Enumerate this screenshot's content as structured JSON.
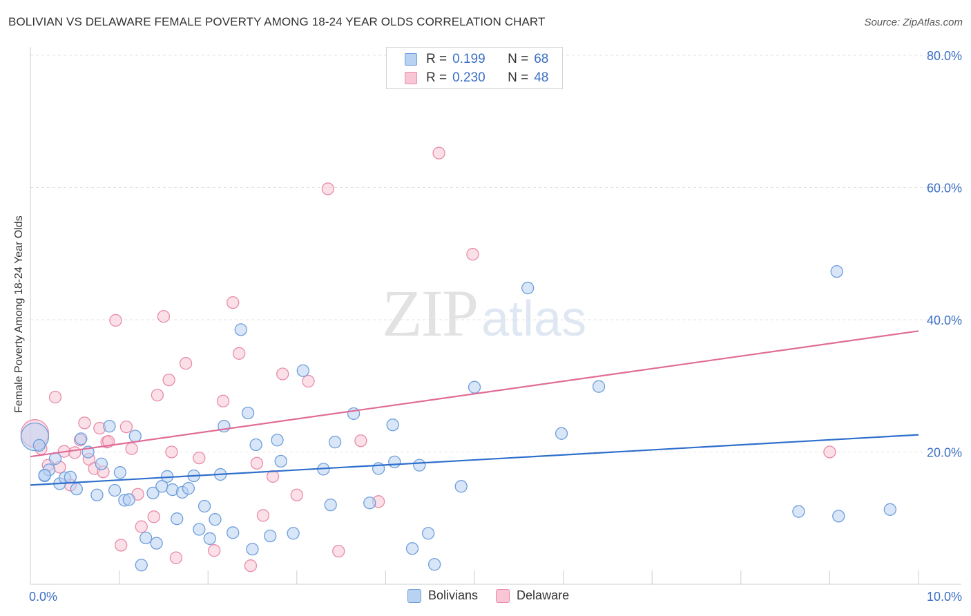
{
  "header": {
    "title": "BOLIVIAN VS DELAWARE FEMALE POVERTY AMONG 18-24 YEAR OLDS CORRELATION CHART",
    "source": "Source: ZipAtlas.com"
  },
  "watermark": {
    "zip": "ZIP",
    "atlas": "atlas"
  },
  "legend": {
    "rows": [
      {
        "r_label": "R =",
        "r_value": "0.199",
        "n_label": "N =",
        "n_value": "68"
      },
      {
        "r_label": "R =",
        "r_value": "0.230",
        "n_label": "N =",
        "n_value": "48"
      }
    ]
  },
  "colors": {
    "bolivians_fill": "#b9d2f2",
    "bolivians_stroke": "#6d9edb",
    "bolivians_line": "#2e6fcc",
    "delaware_fill": "#f9c6d6",
    "delaware_stroke": "#e88aa9",
    "delaware_line": "#e06b96",
    "tick_label": "#3b6fc4",
    "grid": "#e3e3e3"
  },
  "chart_data": {
    "type": "scatter",
    "title": "BOLIVIAN VS DELAWARE FEMALE POVERTY AMONG 18-24 YEAR OLDS CORRELATION CHART",
    "xlabel": "",
    "ylabel": "Female Poverty Among 18-24 Year Olds",
    "xlim": [
      0,
      10
    ],
    "ylim": [
      0,
      80
    ],
    "x_ticks": [
      "0.0%",
      "10.0%"
    ],
    "y_ticks": [
      "20.0%",
      "40.0%",
      "60.0%",
      "80.0%"
    ],
    "y_tick_values": [
      20,
      40,
      60,
      80
    ],
    "grid": "horizontal dashed",
    "legend_position": "top-center and bottom",
    "series": [
      {
        "name": "Bolivians",
        "trend": {
          "x": [
            0,
            10
          ],
          "y": [
            15.0,
            22.6
          ]
        },
        "points": [
          {
            "x": 0.05,
            "y": 22.3,
            "big": true
          },
          {
            "x": 0.1,
            "y": 21.0
          },
          {
            "x": 0.16,
            "y": 16.4
          },
          {
            "x": 0.21,
            "y": 17.3
          },
          {
            "x": 0.28,
            "y": 19.0
          },
          {
            "x": 0.33,
            "y": 15.2
          },
          {
            "x": 0.39,
            "y": 16.1
          },
          {
            "x": 0.45,
            "y": 16.2
          },
          {
            "x": 0.52,
            "y": 14.4
          },
          {
            "x": 0.57,
            "y": 22.0
          },
          {
            "x": 0.65,
            "y": 20.0
          },
          {
            "x": 0.75,
            "y": 13.5
          },
          {
            "x": 0.8,
            "y": 18.2
          },
          {
            "x": 0.89,
            "y": 23.9
          },
          {
            "x": 0.95,
            "y": 14.2
          },
          {
            "x": 1.01,
            "y": 16.9
          },
          {
            "x": 1.06,
            "y": 12.7
          },
          {
            "x": 1.11,
            "y": 12.8
          },
          {
            "x": 1.18,
            "y": 22.4
          },
          {
            "x": 1.25,
            "y": 2.9
          },
          {
            "x": 1.3,
            "y": 7.0
          },
          {
            "x": 1.38,
            "y": 13.8
          },
          {
            "x": 1.42,
            "y": 6.2
          },
          {
            "x": 1.48,
            "y": 14.8
          },
          {
            "x": 1.54,
            "y": 16.3
          },
          {
            "x": 1.6,
            "y": 14.3
          },
          {
            "x": 1.65,
            "y": 9.9
          },
          {
            "x": 1.71,
            "y": 13.9
          },
          {
            "x": 1.78,
            "y": 14.5
          },
          {
            "x": 1.84,
            "y": 16.4
          },
          {
            "x": 1.9,
            "y": 8.3
          },
          {
            "x": 1.96,
            "y": 11.8
          },
          {
            "x": 2.02,
            "y": 6.9
          },
          {
            "x": 2.08,
            "y": 9.8
          },
          {
            "x": 2.14,
            "y": 16.6
          },
          {
            "x": 2.18,
            "y": 23.9
          },
          {
            "x": 2.28,
            "y": 7.8
          },
          {
            "x": 2.37,
            "y": 38.5
          },
          {
            "x": 2.45,
            "y": 25.9
          },
          {
            "x": 2.5,
            "y": 5.3
          },
          {
            "x": 2.54,
            "y": 21.1
          },
          {
            "x": 2.7,
            "y": 7.3
          },
          {
            "x": 2.78,
            "y": 21.8
          },
          {
            "x": 2.82,
            "y": 18.6
          },
          {
            "x": 2.96,
            "y": 7.7
          },
          {
            "x": 3.07,
            "y": 32.3
          },
          {
            "x": 3.3,
            "y": 17.4
          },
          {
            "x": 3.38,
            "y": 12.0
          },
          {
            "x": 3.43,
            "y": 21.5
          },
          {
            "x": 3.64,
            "y": 25.8
          },
          {
            "x": 3.82,
            "y": 12.3
          },
          {
            "x": 3.92,
            "y": 17.5
          },
          {
            "x": 4.08,
            "y": 24.1
          },
          {
            "x": 4.1,
            "y": 18.5
          },
          {
            "x": 4.3,
            "y": 5.4
          },
          {
            "x": 4.38,
            "y": 18.0
          },
          {
            "x": 4.48,
            "y": 7.7
          },
          {
            "x": 4.55,
            "y": 3.0
          },
          {
            "x": 4.85,
            "y": 14.8
          },
          {
            "x": 5.0,
            "y": 29.8
          },
          {
            "x": 5.6,
            "y": 44.8
          },
          {
            "x": 5.98,
            "y": 22.8
          },
          {
            "x": 6.4,
            "y": 29.9
          },
          {
            "x": 8.65,
            "y": 11.0
          },
          {
            "x": 9.08,
            "y": 47.3
          },
          {
            "x": 9.1,
            "y": 10.3
          },
          {
            "x": 9.68,
            "y": 11.3
          },
          {
            "x": 0.16,
            "y": 16.5
          }
        ]
      },
      {
        "name": "Delaware",
        "trend": {
          "x": [
            0,
            10
          ],
          "y": [
            19.3,
            38.3
          ]
        },
        "points": [
          {
            "x": 0.05,
            "y": 22.8,
            "big": true
          },
          {
            "x": 0.12,
            "y": 20.5
          },
          {
            "x": 0.2,
            "y": 18.0
          },
          {
            "x": 0.28,
            "y": 28.3
          },
          {
            "x": 0.33,
            "y": 17.7
          },
          {
            "x": 0.38,
            "y": 20.1
          },
          {
            "x": 0.45,
            "y": 15.0
          },
          {
            "x": 0.5,
            "y": 19.9
          },
          {
            "x": 0.56,
            "y": 21.8
          },
          {
            "x": 0.61,
            "y": 24.4
          },
          {
            "x": 0.66,
            "y": 18.9
          },
          {
            "x": 0.72,
            "y": 17.5
          },
          {
            "x": 0.78,
            "y": 23.6
          },
          {
            "x": 0.82,
            "y": 17.0
          },
          {
            "x": 0.86,
            "y": 21.5
          },
          {
            "x": 0.88,
            "y": 21.6
          },
          {
            "x": 0.96,
            "y": 39.9
          },
          {
            "x": 1.02,
            "y": 5.9
          },
          {
            "x": 1.08,
            "y": 23.8
          },
          {
            "x": 1.14,
            "y": 20.5
          },
          {
            "x": 1.21,
            "y": 13.6
          },
          {
            "x": 1.25,
            "y": 8.7
          },
          {
            "x": 1.39,
            "y": 10.2
          },
          {
            "x": 1.43,
            "y": 28.6
          },
          {
            "x": 1.5,
            "y": 40.5
          },
          {
            "x": 1.56,
            "y": 30.9
          },
          {
            "x": 1.59,
            "y": 20.0
          },
          {
            "x": 1.64,
            "y": 4.0
          },
          {
            "x": 1.75,
            "y": 33.4
          },
          {
            "x": 1.9,
            "y": 19.1
          },
          {
            "x": 2.07,
            "y": 5.1
          },
          {
            "x": 2.17,
            "y": 27.7
          },
          {
            "x": 2.28,
            "y": 42.6
          },
          {
            "x": 2.35,
            "y": 34.9
          },
          {
            "x": 2.48,
            "y": 2.8
          },
          {
            "x": 2.55,
            "y": 18.3
          },
          {
            "x": 2.62,
            "y": 10.4
          },
          {
            "x": 2.73,
            "y": 16.3
          },
          {
            "x": 2.84,
            "y": 31.8
          },
          {
            "x": 3.0,
            "y": 13.5
          },
          {
            "x": 3.13,
            "y": 30.7
          },
          {
            "x": 3.35,
            "y": 59.8
          },
          {
            "x": 3.47,
            "y": 5.0
          },
          {
            "x": 3.72,
            "y": 21.7
          },
          {
            "x": 3.92,
            "y": 12.5
          },
          {
            "x": 4.6,
            "y": 65.2
          },
          {
            "x": 4.98,
            "y": 49.9
          },
          {
            "x": 9.0,
            "y": 20.0
          }
        ]
      }
    ]
  },
  "bottom_legend": {
    "items": [
      "Bolivians",
      "Delaware"
    ]
  }
}
